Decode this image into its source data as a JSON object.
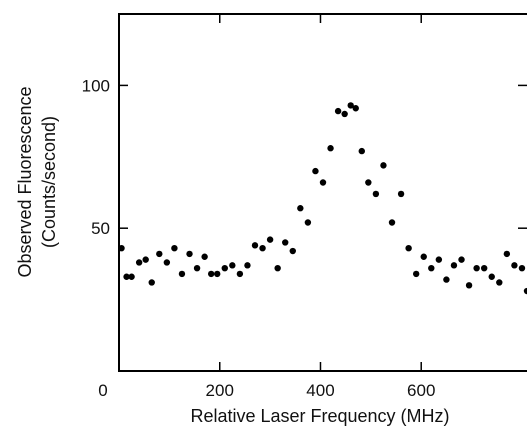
{
  "chart_data": {
    "type": "scatter",
    "title": "",
    "xlabel": "Relative Laser Frequency (MHz)",
    "ylabel_line1": "Observed Fluorescence",
    "ylabel_line2": "(Counts/second)",
    "xlim": [
      0,
      810
    ],
    "ylim": [
      0,
      125
    ],
    "x_ticks": [
      0,
      200,
      400,
      600
    ],
    "x_tick_labels": [
      "0",
      "200",
      "400",
      "600"
    ],
    "y_ticks": [
      50,
      100
    ],
    "y_tick_labels": [
      "50",
      "100"
    ],
    "grid": false,
    "marker_color": "#000000",
    "series": [
      {
        "x": [
          5,
          15,
          25,
          40,
          53,
          65,
          80,
          95,
          110,
          125,
          140,
          155,
          170,
          183,
          195,
          210,
          225,
          240,
          255,
          270,
          285,
          300,
          315,
          330,
          345,
          360,
          375,
          390,
          405,
          420,
          435,
          448,
          460,
          470,
          482,
          495,
          510,
          525,
          542,
          560,
          575,
          590,
          605,
          620,
          635,
          650,
          665,
          680,
          695,
          710,
          725,
          740,
          755,
          770,
          785,
          800,
          810
        ],
        "y": [
          43,
          33,
          33,
          38,
          39,
          31,
          41,
          38,
          43,
          34,
          41,
          36,
          40,
          34,
          34,
          36,
          37,
          34,
          37,
          44,
          43,
          46,
          36,
          45,
          42,
          57,
          52,
          70,
          66,
          78,
          91,
          90,
          93,
          92,
          77,
          66,
          62,
          72,
          52,
          62,
          43,
          34,
          40,
          36,
          39,
          32,
          37,
          39,
          30,
          36,
          36,
          33,
          31,
          41,
          37,
          36,
          28
        ]
      }
    ]
  }
}
